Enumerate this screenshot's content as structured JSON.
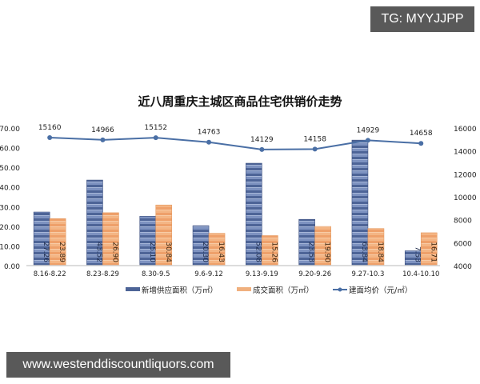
{
  "watermarks": {
    "top_label": "TG: MYYJJPP",
    "bottom_label": "www.westenddiscountliquors.com"
  },
  "chart_data": {
    "type": "bar",
    "title": "近八周重庆主城区商品住宅供销价走势",
    "categories": [
      "8.16-8.22",
      "8.23-8.29",
      "8.30-9.5",
      "9.6-9.12",
      "9.13-9.19",
      "9.20-9.26",
      "9.27-10.3",
      "10.4-10.10"
    ],
    "series": [
      {
        "name": "新增供应面积（万㎡）",
        "type": "bar",
        "axis": "left",
        "color": "#4a5f8e",
        "values": [
          27.26,
          43.52,
          25.1,
          20.3,
          52.08,
          23.53,
          63.84,
          7.53
        ]
      },
      {
        "name": "成交面积（万㎡）",
        "type": "bar",
        "axis": "left",
        "color": "#f0a870",
        "values": [
          23.89,
          26.9,
          30.84,
          16.43,
          15.26,
          19.9,
          18.84,
          16.71
        ]
      },
      {
        "name": "建面均价（元/㎡）",
        "type": "line",
        "axis": "right",
        "color": "#4a6fa5",
        "values": [
          15160,
          14966,
          15152,
          14763,
          14129,
          14158,
          14929,
          14658
        ]
      }
    ],
    "left_axis": {
      "ylim": [
        0,
        70
      ],
      "ticks": [
        "0.00",
        "10.00",
        "20.00",
        "30.00",
        "40.00",
        "50.00",
        "60.00",
        "70.00"
      ]
    },
    "right_axis": {
      "ylim": [
        4000,
        16000
      ],
      "ticks": [
        "4000",
        "6000",
        "8000",
        "10000",
        "12000",
        "14000",
        "16000"
      ]
    },
    "legend": {
      "position": "bottom",
      "items": [
        "新增供应面积（万㎡）",
        "成交面积（万㎡）",
        "建面均价（元/㎡）"
      ]
    },
    "grid": false,
    "xlabel": "",
    "ylabel": ""
  }
}
